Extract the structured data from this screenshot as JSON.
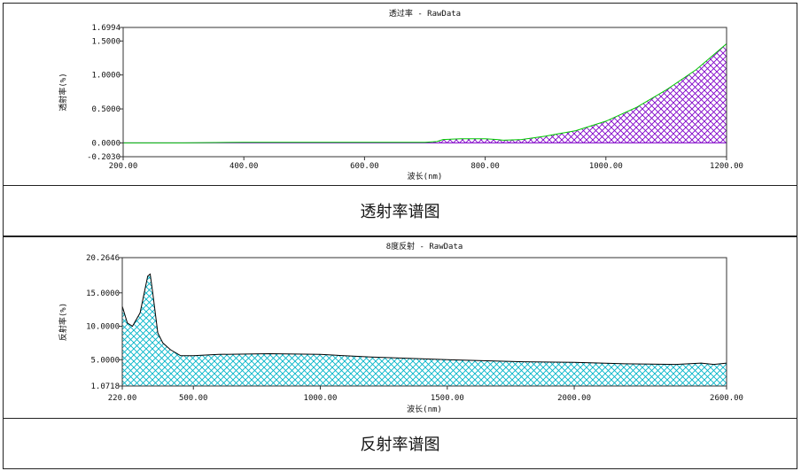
{
  "chart_data": [
    {
      "type": "area",
      "title": "透过率 - RawData",
      "xlabel": "波长(nm)",
      "ylabel": "透射率(%)",
      "xlim": [
        200,
        1200
      ],
      "ylim": [
        -0.203,
        1.6994
      ],
      "xticks": [
        "200.00",
        "400.00",
        "600.00",
        "800.00",
        "1000.00",
        "1200.00"
      ],
      "xtick_values": [
        200,
        400,
        600,
        800,
        1000,
        1200
      ],
      "yticks": [
        "1.6994",
        "1.5000",
        "1.0000",
        "0.5000",
        "0.0000",
        "-0.2030"
      ],
      "ytick_values": [
        1.6994,
        1.5,
        1.0,
        0.5,
        0.0,
        -0.203
      ],
      "grid": false,
      "series": [
        {
          "line_color": "#00c800",
          "fill_color": "#7f00c8",
          "x": [
            200,
            300,
            400,
            500,
            600,
            700,
            720,
            730,
            760,
            800,
            820,
            830,
            860,
            900,
            950,
            1000,
            1050,
            1100,
            1150,
            1200
          ],
          "y": [
            0.0,
            0.0,
            0.01,
            0.01,
            0.01,
            0.01,
            0.02,
            0.05,
            0.06,
            0.06,
            0.05,
            0.04,
            0.05,
            0.1,
            0.18,
            0.32,
            0.52,
            0.78,
            1.08,
            1.46
          ]
        }
      ]
    },
    {
      "type": "area",
      "title": "8度反射 - RawData",
      "xlabel": "波长(nm)",
      "ylabel": "反射率(%)",
      "xlim": [
        220,
        2600
      ],
      "ylim": [
        1.0718,
        20.2646
      ],
      "xticks": [
        "220.00",
        "500.00",
        "1000.00",
        "1500.00",
        "2000.00",
        "2600.00"
      ],
      "xtick_values": [
        220,
        500,
        1000,
        1500,
        2000,
        2600
      ],
      "yticks": [
        "20.2646",
        "15.0000",
        "10.0000",
        "5.0000",
        "1.0718"
      ],
      "ytick_values": [
        20.2646,
        15.0,
        10.0,
        5.0,
        1.0718
      ],
      "grid": false,
      "series": [
        {
          "line_color": "#000000",
          "fill_color": "#00b4c8",
          "x": [
            220,
            240,
            260,
            290,
            320,
            330,
            340,
            360,
            380,
            410,
            450,
            500,
            600,
            800,
            1000,
            1200,
            1500,
            1800,
            2000,
            2200,
            2400,
            2500,
            2550,
            2600
          ],
          "y": [
            13.0,
            10.5,
            10.0,
            12.0,
            17.5,
            17.8,
            15.0,
            9.0,
            7.5,
            6.5,
            5.6,
            5.6,
            5.8,
            5.9,
            5.8,
            5.4,
            5.0,
            4.7,
            4.6,
            4.4,
            4.3,
            4.5,
            4.3,
            4.5
          ]
        }
      ]
    }
  ],
  "captions": {
    "top": "透射率谱图",
    "bottom": "反射率谱图"
  }
}
